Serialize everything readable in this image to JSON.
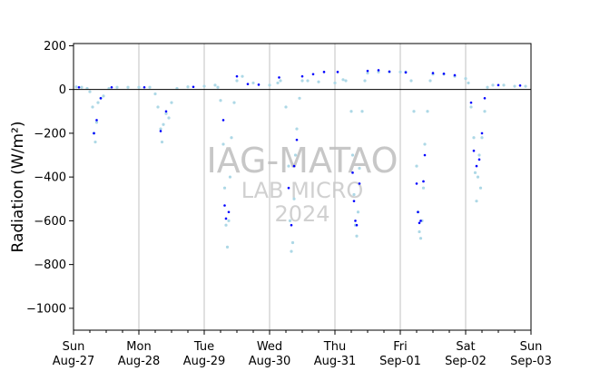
{
  "chart_data": {
    "type": "scatter",
    "title": "",
    "xlabel": "",
    "ylabel": "Radiation (W/m²)",
    "ylim": [
      -1100,
      210
    ],
    "xlim": [
      "2023-08-27 00:00",
      "2023-09-03 00:00"
    ],
    "yticks": [
      200,
      0,
      -200,
      -400,
      -600,
      -800,
      -1000
    ],
    "xticks": [
      {
        "day": "Sun",
        "date": "Aug-27"
      },
      {
        "day": "Mon",
        "date": "Aug-28"
      },
      {
        "day": "Tue",
        "date": "Aug-29"
      },
      {
        "day": "Wed",
        "date": "Aug-30"
      },
      {
        "day": "Thu",
        "date": "Aug-31"
      },
      {
        "day": "Fri",
        "date": "Sep-01"
      },
      {
        "day": "Sat",
        "date": "Sep-02"
      },
      {
        "day": "Sun",
        "date": "Sep-03"
      }
    ],
    "grid": "vertical",
    "zero_line": true,
    "colors": {
      "series_dense": "#add8e6",
      "series_sparse": "#0000ff",
      "grid": "#c0c0c0",
      "zero_line": "#000000"
    },
    "watermark": [
      "IAG-MATAO",
      "LAB MICRO",
      "2024"
    ],
    "series": [
      {
        "color": "#add8e6",
        "points": [
          [
            "2023-08-27 01:00",
            12
          ],
          [
            "2023-08-27 03:00",
            10
          ],
          [
            "2023-08-27 05:00",
            5
          ],
          [
            "2023-08-27 06:00",
            -10
          ],
          [
            "2023-08-27 07:00",
            -80
          ],
          [
            "2023-08-27 07:30",
            -200
          ],
          [
            "2023-08-27 08:00",
            -240
          ],
          [
            "2023-08-27 08:30",
            -150
          ],
          [
            "2023-08-27 09:00",
            -60
          ],
          [
            "2023-08-27 10:00",
            -40
          ],
          [
            "2023-08-27 11:00",
            -30
          ],
          [
            "2023-08-27 13:00",
            5
          ],
          [
            "2023-08-27 16:00",
            10
          ],
          [
            "2023-08-27 20:00",
            10
          ],
          [
            "2023-08-28 00:00",
            10
          ],
          [
            "2023-08-28 04:00",
            10
          ],
          [
            "2023-08-28 06:00",
            -20
          ],
          [
            "2023-08-28 07:00",
            -80
          ],
          [
            "2023-08-28 08:00",
            -180
          ],
          [
            "2023-08-28 08:30",
            -240
          ],
          [
            "2023-08-28 09:00",
            -160
          ],
          [
            "2023-08-28 10:00",
            -110
          ],
          [
            "2023-08-28 11:00",
            -130
          ],
          [
            "2023-08-28 12:00",
            -60
          ],
          [
            "2023-08-28 14:00",
            5
          ],
          [
            "2023-08-28 18:00",
            12
          ],
          [
            "2023-08-29 00:00",
            15
          ],
          [
            "2023-08-29 04:00",
            20
          ],
          [
            "2023-08-29 05:00",
            10
          ],
          [
            "2023-08-29 06:00",
            -50
          ],
          [
            "2023-08-29 07:00",
            -250
          ],
          [
            "2023-08-29 07:30",
            -450
          ],
          [
            "2023-08-29 08:00",
            -620
          ],
          [
            "2023-08-29 08:30",
            -720
          ],
          [
            "2023-08-29 09:00",
            -600
          ],
          [
            "2023-08-29 09:30",
            -400
          ],
          [
            "2023-08-29 10:00",
            -220
          ],
          [
            "2023-08-29 11:00",
            -60
          ],
          [
            "2023-08-29 12:00",
            40
          ],
          [
            "2023-08-29 14:00",
            60
          ],
          [
            "2023-08-29 18:00",
            30
          ],
          [
            "2023-08-30 00:00",
            20
          ],
          [
            "2023-08-30 03:00",
            30
          ],
          [
            "2023-08-30 04:00",
            40
          ],
          [
            "2023-08-30 06:00",
            -80
          ],
          [
            "2023-08-30 07:00",
            -350
          ],
          [
            "2023-08-30 07:30",
            -600
          ],
          [
            "2023-08-30 08:00",
            -740
          ],
          [
            "2023-08-30 08:30",
            -700
          ],
          [
            "2023-08-30 09:00",
            -500
          ],
          [
            "2023-08-30 09:30",
            -300
          ],
          [
            "2023-08-30 10:00",
            -180
          ],
          [
            "2023-08-30 11:00",
            -40
          ],
          [
            "2023-08-30 12:00",
            40
          ],
          [
            "2023-08-30 14:00",
            40
          ],
          [
            "2023-08-30 18:00",
            35
          ],
          [
            "2023-08-31 00:00",
            30
          ],
          [
            "2023-08-31 03:00",
            45
          ],
          [
            "2023-08-31 04:00",
            40
          ],
          [
            "2023-08-31 06:00",
            -100
          ],
          [
            "2023-08-31 06:30",
            -300
          ],
          [
            "2023-08-31 07:00",
            -480
          ],
          [
            "2023-08-31 07:30",
            -620
          ],
          [
            "2023-08-31 08:00",
            -670
          ],
          [
            "2023-08-31 08:30",
            -560
          ],
          [
            "2023-08-31 09:00",
            -360
          ],
          [
            "2023-08-31 10:00",
            -100
          ],
          [
            "2023-08-31 11:00",
            40
          ],
          [
            "2023-08-31 12:00",
            75
          ],
          [
            "2023-08-31 16:00",
            80
          ],
          [
            "2023-08-31 20:00",
            80
          ],
          [
            "2023-09-01 00:00",
            80
          ],
          [
            "2023-09-01 02:00",
            80
          ],
          [
            "2023-09-01 04:00",
            40
          ],
          [
            "2023-09-01 05:00",
            -100
          ],
          [
            "2023-09-01 06:00",
            -350
          ],
          [
            "2023-09-01 06:30",
            -560
          ],
          [
            "2023-09-01 07:00",
            -650
          ],
          [
            "2023-09-01 07:30",
            -680
          ],
          [
            "2023-09-01 08:00",
            -600
          ],
          [
            "2023-09-01 08:30",
            -450
          ],
          [
            "2023-09-01 09:00",
            -250
          ],
          [
            "2023-09-01 10:00",
            -100
          ],
          [
            "2023-09-01 11:00",
            40
          ],
          [
            "2023-09-01 12:00",
            70
          ],
          [
            "2023-09-01 16:00",
            70
          ],
          [
            "2023-09-01 20:00",
            60
          ],
          [
            "2023-09-02 00:00",
            50
          ],
          [
            "2023-09-02 01:00",
            30
          ],
          [
            "2023-09-02 02:00",
            -80
          ],
          [
            "2023-09-02 03:00",
            -220
          ],
          [
            "2023-09-02 03:30",
            -380
          ],
          [
            "2023-09-02 04:00",
            -510
          ],
          [
            "2023-09-02 04:30",
            -400
          ],
          [
            "2023-09-02 05:00",
            -300
          ],
          [
            "2023-09-02 05:30",
            -450
          ],
          [
            "2023-09-02 06:00",
            -220
          ],
          [
            "2023-09-02 07:00",
            -100
          ],
          [
            "2023-09-02 08:00",
            10
          ],
          [
            "2023-09-02 10:00",
            20
          ],
          [
            "2023-09-02 14:00",
            20
          ],
          [
            "2023-09-02 18:00",
            15
          ],
          [
            "2023-09-02 22:00",
            15
          ]
        ]
      },
      {
        "color": "#0000ff",
        "points": [
          [
            "2023-08-27 02:00",
            10
          ],
          [
            "2023-08-27 07:30",
            -200
          ],
          [
            "2023-08-27 08:30",
            -140
          ],
          [
            "2023-08-27 10:00",
            -40
          ],
          [
            "2023-08-27 14:00",
            10
          ],
          [
            "2023-08-28 02:00",
            10
          ],
          [
            "2023-08-28 08:00",
            -190
          ],
          [
            "2023-08-28 10:00",
            -100
          ],
          [
            "2023-08-28 20:00",
            12
          ],
          [
            "2023-08-29 07:00",
            -140
          ],
          [
            "2023-08-29 07:30",
            -530
          ],
          [
            "2023-08-29 08:00",
            -590
          ],
          [
            "2023-08-29 09:00",
            -560
          ],
          [
            "2023-08-29 12:00",
            60
          ],
          [
            "2023-08-29 16:00",
            25
          ],
          [
            "2023-08-29 20:00",
            22
          ],
          [
            "2023-08-30 03:30",
            55
          ],
          [
            "2023-08-30 07:00",
            -450
          ],
          [
            "2023-08-30 08:00",
            -620
          ],
          [
            "2023-08-30 09:00",
            -350
          ],
          [
            "2023-08-30 10:00",
            -230
          ],
          [
            "2023-08-30 12:00",
            60
          ],
          [
            "2023-08-30 16:00",
            70
          ],
          [
            "2023-08-30 20:00",
            80
          ],
          [
            "2023-08-31 01:00",
            80
          ],
          [
            "2023-08-31 06:30",
            -380
          ],
          [
            "2023-08-31 07:00",
            -510
          ],
          [
            "2023-08-31 07:30",
            -600
          ],
          [
            "2023-08-31 08:00",
            -620
          ],
          [
            "2023-08-31 09:00",
            -430
          ],
          [
            "2023-08-31 12:00",
            85
          ],
          [
            "2023-08-31 16:00",
            88
          ],
          [
            "2023-08-31 20:00",
            82
          ],
          [
            "2023-09-01 02:00",
            78
          ],
          [
            "2023-09-01 06:00",
            -430
          ],
          [
            "2023-09-01 06:30",
            -560
          ],
          [
            "2023-09-01 07:00",
            -610
          ],
          [
            "2023-09-01 07:30",
            -600
          ],
          [
            "2023-09-01 08:30",
            -420
          ],
          [
            "2023-09-01 09:00",
            -300
          ],
          [
            "2023-09-01 12:00",
            75
          ],
          [
            "2023-09-01 16:00",
            72
          ],
          [
            "2023-09-01 20:00",
            65
          ],
          [
            "2023-09-02 02:00",
            -60
          ],
          [
            "2023-09-02 03:00",
            -280
          ],
          [
            "2023-09-02 04:00",
            -350
          ],
          [
            "2023-09-02 05:00",
            -320
          ],
          [
            "2023-09-02 06:00",
            -200
          ],
          [
            "2023-09-02 07:00",
            -40
          ],
          [
            "2023-09-02 12:00",
            20
          ],
          [
            "2023-09-02 20:00",
            18
          ]
        ]
      }
    ]
  }
}
